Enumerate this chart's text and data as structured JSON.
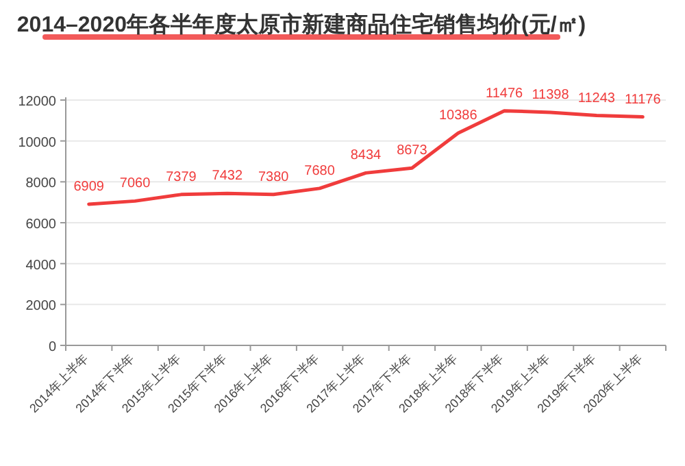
{
  "chart_data": {
    "type": "line",
    "title": "2014–2020年各半年度太原市新建商品住宅销售均价(元/㎡)",
    "categories": [
      "2014年上半年",
      "2014年下半年",
      "2015年上半年",
      "2015年下半年",
      "2016年上半年",
      "2016年下半年",
      "2017年上半年",
      "2017年下半年",
      "2018年上半年",
      "2018年下半年",
      "2019年上半年",
      "2019年下半年",
      "2020年上半年"
    ],
    "series": [
      {
        "color": "#f03c3c",
        "values": [
          6909,
          7060,
          7379,
          7432,
          7380,
          7680,
          8434,
          8673,
          10386,
          11476,
          11398,
          11243,
          11176
        ]
      }
    ],
    "ylim": [
      0,
      12000
    ],
    "yticks": [
      0,
      2000,
      4000,
      6000,
      8000,
      10000,
      12000
    ],
    "grid": "y",
    "data_labels": true,
    "marker": "none",
    "line_style": "solid"
  }
}
